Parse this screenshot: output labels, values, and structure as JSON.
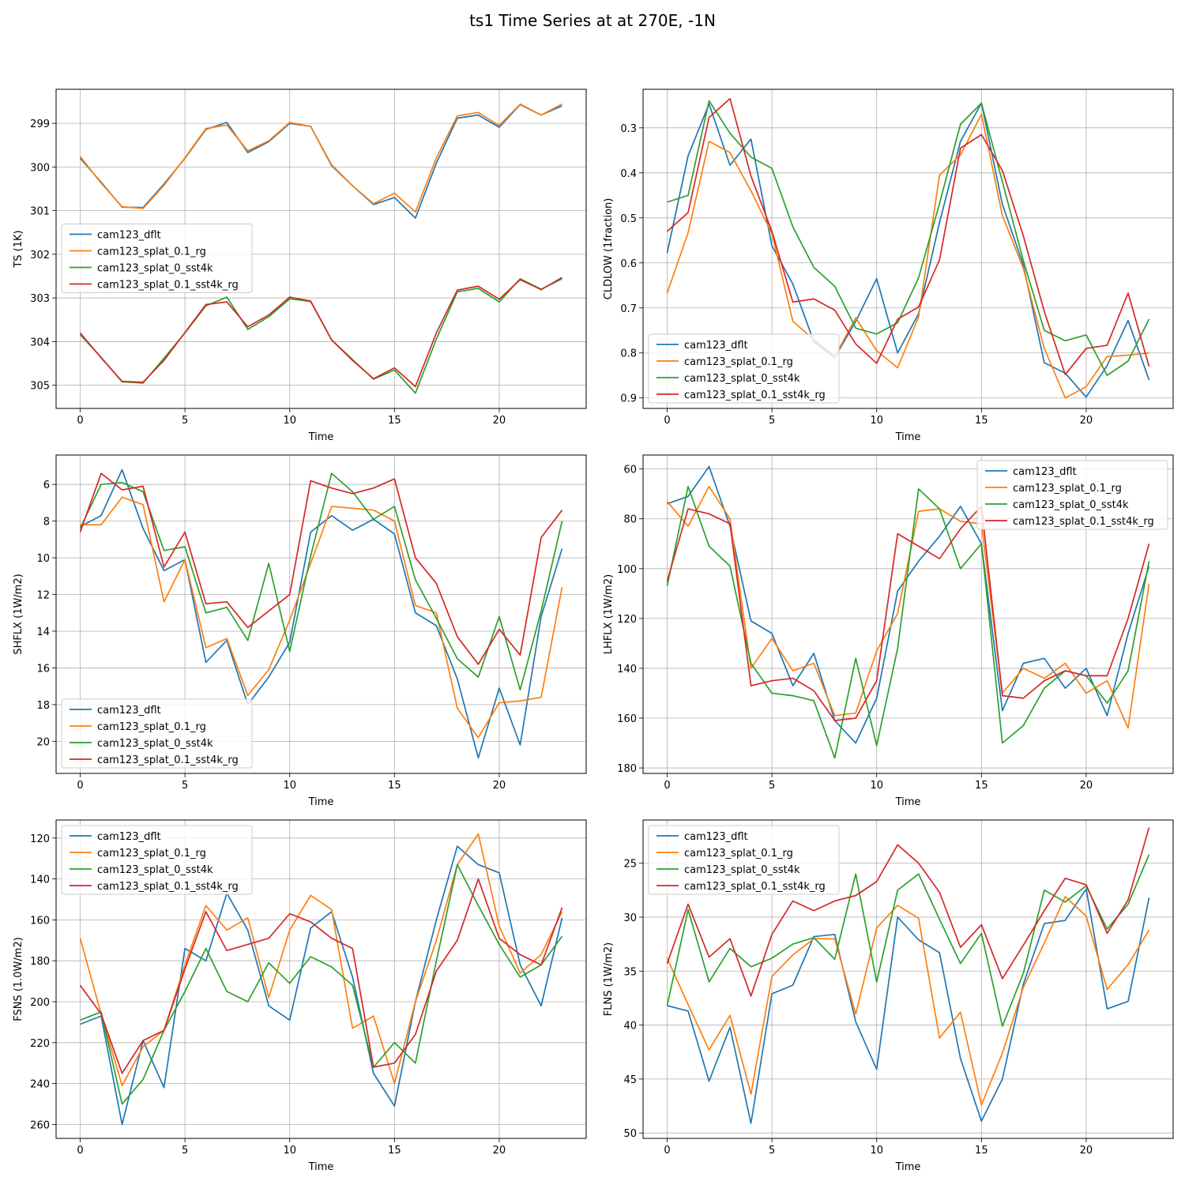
{
  "figure": {
    "title": "ts1 Time Series at at 270E, -1N"
  },
  "colors": {
    "cam123_dflt": "#1f77b4",
    "cam123_splat_0.1_rg": "#ff7f0e",
    "cam123_splat_0_sst4k": "#2ca02c",
    "cam123_splat_0.1_sst4k_rg": "#d62728"
  },
  "chart_data": [
    {
      "type": "line",
      "xlabel": "Time",
      "ylabel": "TS (1K)",
      "xlim": [
        -1.15,
        24.15
      ],
      "ylim": [
        305.53,
        298.22
      ],
      "xticks": [
        0,
        5,
        10,
        15,
        20
      ],
      "yticks": [
        299,
        300,
        301,
        302,
        303,
        304,
        305
      ],
      "legend_loc": "center-left",
      "x": [
        0,
        1,
        2,
        3,
        4,
        5,
        6,
        7,
        8,
        9,
        10,
        11,
        12,
        13,
        14,
        15,
        16,
        17,
        18,
        19,
        20,
        21,
        22,
        23
      ],
      "series": [
        {
          "name": "cam123_dflt",
          "values": [
            299.8,
            300.35,
            300.92,
            300.93,
            300.39,
            299.8,
            299.14,
            298.98,
            299.67,
            299.42,
            299.0,
            299.07,
            299.97,
            300.43,
            300.86,
            300.7,
            301.17,
            299.91,
            298.88,
            298.81,
            299.09,
            298.57,
            298.81,
            298.6
          ]
        },
        {
          "name": "cam123_splat_0.1_rg",
          "values": [
            299.76,
            300.37,
            300.91,
            300.95,
            300.42,
            299.79,
            299.12,
            299.04,
            299.63,
            299.4,
            298.98,
            299.07,
            299.95,
            300.43,
            300.84,
            300.6,
            301.03,
            299.79,
            298.83,
            298.75,
            299.05,
            298.56,
            298.81,
            298.56
          ]
        },
        {
          "name": "cam123_splat_0_sst4k",
          "values": [
            303.84,
            304.36,
            304.92,
            304.95,
            304.38,
            303.8,
            303.18,
            302.98,
            303.72,
            303.43,
            303.02,
            303.08,
            303.96,
            304.41,
            304.86,
            304.65,
            305.18,
            303.94,
            302.86,
            302.78,
            303.09,
            302.56,
            302.8,
            302.56
          ]
        },
        {
          "name": "cam123_splat_0.1_sst4k_rg",
          "values": [
            303.8,
            304.37,
            304.91,
            304.93,
            304.43,
            303.79,
            303.15,
            303.09,
            303.66,
            303.39,
            302.98,
            303.07,
            303.96,
            304.43,
            304.85,
            304.6,
            305.03,
            303.8,
            302.82,
            302.73,
            303.03,
            302.58,
            302.81,
            302.53
          ]
        }
      ]
    },
    {
      "type": "line",
      "xlabel": "Time",
      "ylabel": "CLDLOW (1fraction)",
      "xlim": [
        -1.15,
        24.15
      ],
      "ylim": [
        0.9233,
        0.2143
      ],
      "xticks": [
        0,
        5,
        10,
        15,
        20
      ],
      "yticks": [
        0.3,
        0.4,
        0.5,
        0.6,
        0.7,
        0.8,
        0.9
      ],
      "legend_loc": "lower-left",
      "x": [
        0,
        1,
        2,
        3,
        4,
        5,
        6,
        7,
        8,
        9,
        10,
        11,
        12,
        13,
        14,
        15,
        16,
        17,
        18,
        19,
        20,
        21,
        22,
        23
      ],
      "series": [
        {
          "name": "cam123_dflt",
          "values": [
            0.578,
            0.362,
            0.247,
            0.383,
            0.325,
            0.562,
            0.647,
            0.775,
            0.81,
            0.73,
            0.635,
            0.8,
            0.713,
            0.51,
            0.33,
            0.245,
            0.47,
            0.605,
            0.822,
            0.845,
            0.898,
            0.828,
            0.728,
            0.86
          ]
        },
        {
          "name": "cam123_splat_0.1_rg",
          "values": [
            0.667,
            0.533,
            0.33,
            0.355,
            0.44,
            0.535,
            0.73,
            0.77,
            0.808,
            0.722,
            0.795,
            0.833,
            0.72,
            0.405,
            0.36,
            0.27,
            0.495,
            0.612,
            0.79,
            0.9,
            0.875,
            0.808,
            0.805,
            0.8
          ]
        },
        {
          "name": "cam123_splat_0_sst4k",
          "values": [
            0.465,
            0.45,
            0.24,
            0.312,
            0.365,
            0.39,
            0.52,
            0.61,
            0.652,
            0.745,
            0.758,
            0.733,
            0.633,
            0.468,
            0.292,
            0.245,
            0.42,
            0.595,
            0.75,
            0.773,
            0.76,
            0.85,
            0.818,
            0.725
          ]
        },
        {
          "name": "cam123_splat_0.1_sst4k_rg",
          "values": [
            0.53,
            0.488,
            0.277,
            0.235,
            0.407,
            0.53,
            0.687,
            0.68,
            0.705,
            0.78,
            0.823,
            0.725,
            0.698,
            0.593,
            0.345,
            0.315,
            0.395,
            0.54,
            0.708,
            0.848,
            0.79,
            0.783,
            0.667,
            0.83
          ]
        }
      ]
    },
    {
      "type": "line",
      "xlabel": "Time",
      "ylabel": "SHFLX (1W/m2)",
      "xlim": [
        -1.15,
        24.15
      ],
      "ylim": [
        21.75,
        4.4
      ],
      "xticks": [
        0,
        5,
        10,
        15,
        20
      ],
      "yticks": [
        6,
        8,
        10,
        12,
        14,
        16,
        18,
        20
      ],
      "legend_loc": "lower-left",
      "x": [
        0,
        1,
        2,
        3,
        4,
        5,
        6,
        7,
        8,
        9,
        10,
        11,
        12,
        13,
        14,
        15,
        16,
        17,
        18,
        19,
        20,
        21,
        22,
        23
      ],
      "series": [
        {
          "name": "cam123_dflt",
          "values": [
            8.3,
            7.7,
            5.2,
            8.4,
            10.7,
            10.1,
            15.7,
            14.5,
            18.0,
            16.5,
            14.6,
            8.6,
            7.7,
            8.5,
            7.9,
            8.7,
            13.0,
            13.7,
            16.6,
            20.9,
            17.1,
            20.2,
            13.2,
            9.5
          ]
        },
        {
          "name": "cam123_splat_0.1_rg",
          "values": [
            8.2,
            8.2,
            6.7,
            7.1,
            12.4,
            10.1,
            14.9,
            14.4,
            17.5,
            16.1,
            13.4,
            10.3,
            7.2,
            7.3,
            7.4,
            8.0,
            12.6,
            13.0,
            18.2,
            19.8,
            17.9,
            17.8,
            17.6,
            11.6
          ]
        },
        {
          "name": "cam123_splat_0_sst4k",
          "values": [
            8.4,
            6.0,
            5.9,
            6.4,
            9.6,
            9.4,
            13.0,
            12.7,
            14.5,
            10.3,
            15.1,
            9.9,
            5.4,
            6.4,
            7.9,
            7.2,
            11.2,
            13.3,
            15.5,
            16.5,
            13.2,
            17.2,
            12.9,
            8.0
          ]
        },
        {
          "name": "cam123_splat_0.1_sst4k_rg",
          "values": [
            8.6,
            5.4,
            6.3,
            6.1,
            10.5,
            8.6,
            12.5,
            12.4,
            13.8,
            12.9,
            12.0,
            5.8,
            6.2,
            6.5,
            6.2,
            5.7,
            10.0,
            11.4,
            14.3,
            15.8,
            13.9,
            15.3,
            8.9,
            7.4
          ]
        }
      ]
    },
    {
      "type": "line",
      "xlabel": "Time",
      "ylabel": "LHFLX (1W/m2)",
      "xlim": [
        -1.15,
        24.15
      ],
      "ylim": [
        182.2,
        54.4
      ],
      "xticks": [
        0,
        5,
        10,
        15,
        20
      ],
      "yticks": [
        60,
        80,
        100,
        120,
        140,
        160,
        180
      ],
      "legend_loc": "upper-right",
      "x": [
        0,
        1,
        2,
        3,
        4,
        5,
        6,
        7,
        8,
        9,
        10,
        11,
        12,
        13,
        14,
        15,
        16,
        17,
        18,
        19,
        20,
        21,
        22,
        23
      ],
      "series": [
        {
          "name": "cam123_dflt",
          "values": [
            74,
            71,
            59,
            83,
            121,
            126,
            147,
            134,
            161,
            170,
            152,
            109,
            97,
            87,
            75,
            90,
            157,
            138,
            136,
            148,
            140,
            159,
            126,
            99
          ]
        },
        {
          "name": "cam123_splat_0.1_rg",
          "values": [
            73,
            83,
            67,
            80,
            140,
            128,
            141,
            138,
            159,
            158,
            133,
            118,
            77,
            76,
            81,
            82,
            150,
            140,
            144,
            138,
            150,
            145,
            164,
            106
          ]
        },
        {
          "name": "cam123_splat_0_sst4k",
          "values": [
            107,
            67,
            91,
            99,
            138,
            150,
            151,
            153,
            176,
            136,
            171,
            132,
            68,
            76,
            100,
            90,
            170,
            163,
            148,
            141,
            143,
            154,
            141,
            97
          ]
        },
        {
          "name": "cam123_splat_0.1_sst4k_rg",
          "values": [
            105,
            76,
            78,
            82,
            147,
            145,
            144,
            149,
            161,
            160,
            145,
            86,
            91,
            96,
            84,
            75,
            151,
            152,
            145,
            141,
            143,
            143,
            120,
            90
          ]
        }
      ]
    },
    {
      "type": "line",
      "xlabel": "Time",
      "ylabel": "FSNS (1.0W/m2)",
      "xlim": [
        -1.15,
        24.15
      ],
      "ylim": [
        266.8,
        111.2
      ],
      "xticks": [
        0,
        5,
        10,
        15,
        20
      ],
      "yticks": [
        120,
        140,
        160,
        180,
        200,
        220,
        240,
        260
      ],
      "legend_loc": "upper-left",
      "x": [
        0,
        1,
        2,
        3,
        4,
        5,
        6,
        7,
        8,
        9,
        10,
        11,
        12,
        13,
        14,
        15,
        16,
        17,
        18,
        19,
        20,
        21,
        22,
        23
      ],
      "series": [
        {
          "name": "cam123_dflt",
          "values": [
            211,
            207,
            260,
            219,
            242,
            174,
            180,
            147,
            165,
            202,
            209,
            164,
            156,
            188,
            235,
            251,
            200,
            160,
            124,
            133,
            137,
            182,
            202,
            159
          ]
        },
        {
          "name": "cam123_splat_0.1_rg",
          "values": [
            169,
            206,
            241,
            222,
            214,
            182,
            153,
            165,
            159,
            198,
            165,
            148,
            155,
            213,
            207,
            240,
            200,
            170,
            133,
            118,
            163,
            186,
            177,
            156
          ]
        },
        {
          "name": "cam123_splat_0_sst4k",
          "values": [
            209,
            205,
            250,
            238,
            214,
            195,
            174,
            195,
            200,
            181,
            191,
            178,
            183,
            192,
            232,
            220,
            230,
            180,
            133,
            153,
            172,
            188,
            182,
            168
          ]
        },
        {
          "name": "cam123_splat_0.1_sst4k_rg",
          "values": [
            192,
            206,
            235,
            219,
            214,
            184,
            156,
            175,
            172,
            169,
            157,
            161,
            169,
            174,
            232,
            230,
            216,
            185,
            170,
            140,
            169,
            177,
            182,
            154
          ]
        }
      ]
    },
    {
      "type": "line",
      "xlabel": "Time",
      "ylabel": "FLNS (1W/m2)",
      "xlim": [
        -1.15,
        24.15
      ],
      "ylim": [
        50.5,
        21.0
      ],
      "xticks": [
        0,
        5,
        10,
        15,
        20
      ],
      "yticks": [
        25,
        30,
        35,
        40,
        45,
        50
      ],
      "legend_loc": "upper-left",
      "x": [
        0,
        1,
        2,
        3,
        4,
        5,
        6,
        7,
        8,
        9,
        10,
        11,
        12,
        13,
        14,
        15,
        16,
        17,
        18,
        19,
        20,
        21,
        22,
        23
      ],
      "series": [
        {
          "name": "cam123_dflt",
          "values": [
            38.2,
            38.7,
            45.2,
            40.2,
            49.1,
            37.1,
            36.3,
            31.8,
            31.6,
            39.7,
            44.1,
            30.0,
            32.1,
            33.3,
            43.1,
            48.9,
            45.0,
            36.2,
            30.6,
            30.3,
            27.4,
            38.5,
            37.8,
            28.2
          ]
        },
        {
          "name": "cam123_splat_0.1_rg",
          "values": [
            33.8,
            38.1,
            42.3,
            39.1,
            46.4,
            35.5,
            33.5,
            32.0,
            32.0,
            39.0,
            31.0,
            28.9,
            30.1,
            41.2,
            38.8,
            47.4,
            42.6,
            36.5,
            32.4,
            28.1,
            29.9,
            36.7,
            34.4,
            31.2
          ]
        },
        {
          "name": "cam123_splat_0_sst4k",
          "values": [
            38.2,
            29.3,
            36.0,
            32.9,
            34.6,
            33.8,
            32.5,
            31.9,
            33.9,
            26.0,
            36.0,
            27.5,
            26.0,
            30.2,
            34.3,
            31.5,
            40.1,
            35.2,
            27.5,
            28.6,
            27.1,
            31.1,
            28.8,
            24.2
          ]
        },
        {
          "name": "cam123_splat_0.1_sst4k_rg",
          "values": [
            34.3,
            28.8,
            33.7,
            32.0,
            37.3,
            31.6,
            28.5,
            29.4,
            28.5,
            28.0,
            26.7,
            23.3,
            25.0,
            27.7,
            32.8,
            30.7,
            35.7,
            32.6,
            29.4,
            26.4,
            27.0,
            31.5,
            28.4,
            21.7
          ]
        }
      ]
    }
  ]
}
